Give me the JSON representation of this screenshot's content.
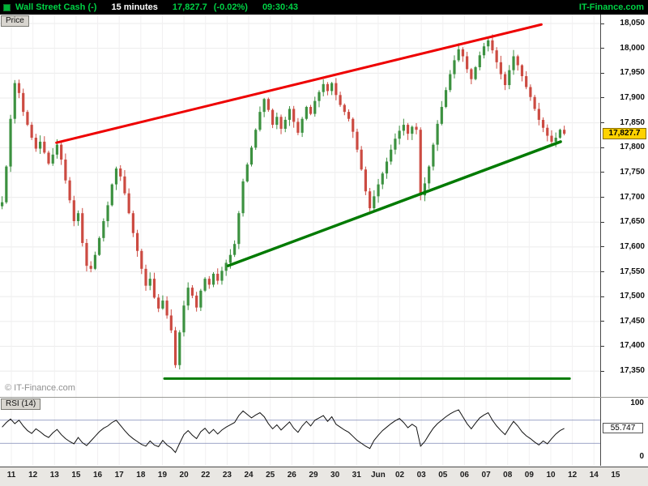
{
  "header": {
    "instrument": "Wall Street Cash (-)",
    "timeframe": "15 minutes",
    "last": "17,827.7",
    "change": "(-0.02%)",
    "time": "09:30:43",
    "brand": "IT-Finance.com"
  },
  "price_panel": {
    "tab": "Price",
    "watermark": "© IT-Finance.com",
    "last_price_label": "17,827.7"
  },
  "rsi_panel": {
    "tab": "RSI (14)",
    "top_label": "100",
    "bottom_label": "0",
    "value_label": "55.747"
  },
  "colors": {
    "up": "#3c9140",
    "down": "#cc4b42",
    "trend_red": "#ee0000",
    "trend_green": "#007a00",
    "grid": "#ebebeb",
    "rsi_line": "#111111",
    "rsi_ref": "#7d86b4",
    "badge_bg": "#ffd200",
    "header_green": "#00d245"
  },
  "chart_data": [
    {
      "type": "candlestick",
      "title": "Wall Street Cash (-) 15 minutes",
      "x_labels": [
        "11",
        "12",
        "13",
        "15",
        "16",
        "17",
        "18",
        "19",
        "20",
        "22",
        "23",
        "24",
        "25",
        "26",
        "29",
        "30",
        "31",
        "Jun",
        "02",
        "03",
        "05",
        "06",
        "07",
        "08",
        "09",
        "10",
        "12",
        "14",
        "15"
      ],
      "y_ticks": [
        "18,050",
        "18,000",
        "17,950",
        "17,900",
        "17,850",
        "17,800",
        "17,750",
        "17,700",
        "17,650",
        "17,600",
        "17,550",
        "17,500",
        "17,450",
        "17,400",
        "17,350"
      ],
      "ylim": [
        17298,
        18068
      ],
      "slots": 142,
      "close": [
        17690,
        17762,
        17858,
        17930,
        17910,
        17872,
        17846,
        17820,
        17798,
        17812,
        17790,
        17768,
        17786,
        17806,
        17776,
        17734,
        17694,
        17652,
        17668,
        17608,
        17562,
        17556,
        17584,
        17618,
        17652,
        17684,
        17726,
        17758,
        17742,
        17708,
        17668,
        17628,
        17592,
        17556,
        17522,
        17536,
        17498,
        17476,
        17492,
        17462,
        17432,
        17362,
        17428,
        17482,
        17518,
        17502,
        17478,
        17512,
        17536,
        17524,
        17546,
        17532,
        17552,
        17568,
        17584,
        17606,
        17668,
        17732,
        17766,
        17800,
        17836,
        17872,
        17898,
        17876,
        17846,
        17862,
        17838,
        17856,
        17878,
        17852,
        17830,
        17858,
        17882,
        17868,
        17894,
        17912,
        17928,
        17914,
        17930,
        17906,
        17886,
        17872,
        17858,
        17832,
        17796,
        17756,
        17712,
        17678,
        17702,
        17726,
        17748,
        17772,
        17796,
        17818,
        17834,
        17846,
        17828,
        17842,
        17836,
        17704,
        17728,
        17762,
        17806,
        17848,
        17882,
        17916,
        17948,
        17976,
        17998,
        17984,
        17958,
        17938,
        17962,
        17986,
        18004,
        18016,
        17996,
        17972,
        17948,
        17926,
        17956,
        17984,
        17966,
        17944,
        17922,
        17902,
        17878,
        17856,
        17840,
        17824,
        17812,
        17820,
        17836,
        17828
      ],
      "last": 17827.7,
      "trendlines": [
        {
          "x1": 0.094,
          "y1": 17810,
          "x2": 0.902,
          "y2": 18048,
          "color_key": "trend_red",
          "width": 3
        },
        {
          "x1": 0.38,
          "y1": 17562,
          "x2": 0.934,
          "y2": 17812,
          "color_key": "trend_green",
          "width": 3.5
        },
        {
          "x1": 0.274,
          "y1": 17335,
          "x2": 0.949,
          "y2": 17335,
          "color_key": "trend_green",
          "width": 3
        }
      ]
    },
    {
      "type": "line",
      "title": "RSI (14)",
      "ylim": [
        -9,
        109
      ],
      "ref_lines": [
        30,
        70
      ],
      "slots": 142,
      "values": [
        58,
        66,
        72,
        64,
        70,
        60,
        52,
        47,
        55,
        50,
        44,
        40,
        48,
        54,
        45,
        38,
        33,
        29,
        40,
        31,
        26,
        34,
        42,
        50,
        56,
        60,
        66,
        70,
        61,
        52,
        44,
        38,
        33,
        28,
        25,
        34,
        27,
        24,
        35,
        27,
        22,
        14,
        30,
        45,
        52,
        44,
        38,
        50,
        56,
        47,
        54,
        46,
        53,
        58,
        62,
        66,
        78,
        86,
        80,
        74,
        79,
        83,
        76,
        64,
        55,
        62,
        53,
        60,
        67,
        56,
        49,
        60,
        68,
        60,
        70,
        74,
        78,
        68,
        76,
        63,
        58,
        53,
        49,
        42,
        35,
        30,
        25,
        21,
        35,
        44,
        52,
        58,
        64,
        69,
        73,
        66,
        57,
        63,
        58,
        25,
        33,
        45,
        56,
        64,
        70,
        76,
        81,
        85,
        88,
        76,
        64,
        55,
        65,
        74,
        79,
        83,
        70,
        60,
        52,
        45,
        57,
        68,
        60,
        50,
        43,
        38,
        32,
        27,
        34,
        29,
        38,
        46,
        52,
        55.747
      ],
      "last": 55.747
    }
  ]
}
